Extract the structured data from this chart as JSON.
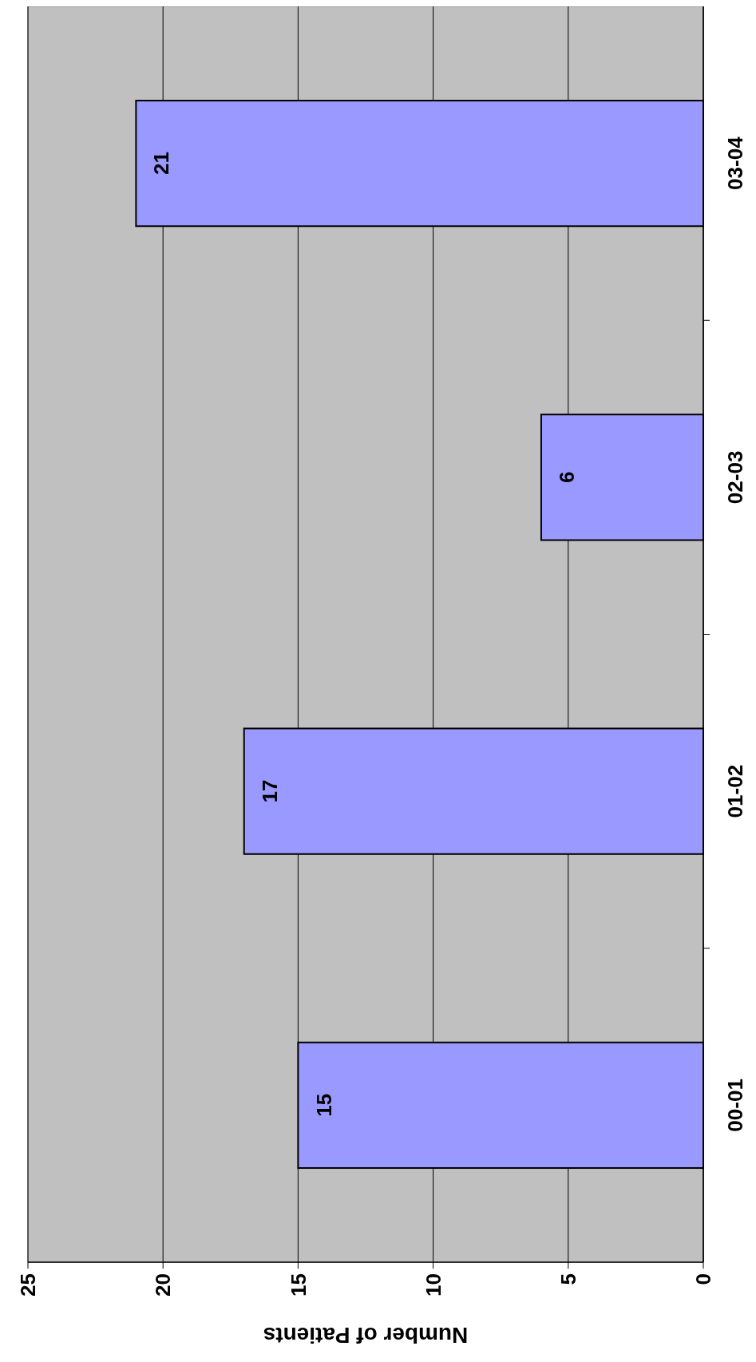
{
  "chart_data": {
    "type": "bar",
    "orientation": "horizontal",
    "xlabel": "Number of Patients",
    "categories": [
      "03-04",
      "02-03",
      "01-02",
      "00-01"
    ],
    "values": [
      21,
      6,
      17,
      15
    ],
    "color": "#9999ff",
    "xlim": [
      25,
      0
    ],
    "xticks": [
      25,
      20,
      15,
      10,
      5,
      0
    ],
    "grid": "x",
    "data_labels": true
  }
}
